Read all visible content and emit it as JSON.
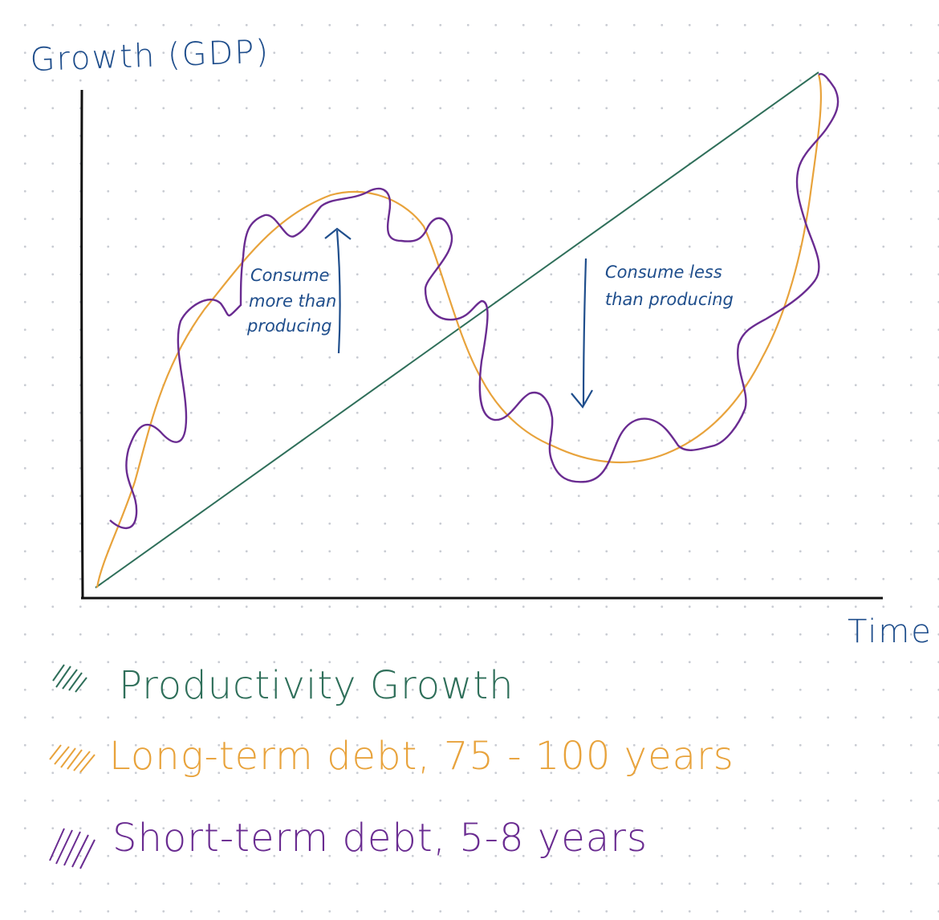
{
  "axes": {
    "y_title": "Growth (GDP)",
    "x_title": "Time"
  },
  "annotations": {
    "peak": [
      "Consume",
      "more than",
      "producing"
    ],
    "trough": [
      "Consume less",
      "than producing"
    ]
  },
  "legend": [
    {
      "label": "Productivity Growth",
      "color": "#2f6f5a"
    },
    {
      "label": "Long-term debt, 75 - 100 years",
      "color": "#e8a33c"
    },
    {
      "label": "Short-term debt, 5-8 years",
      "color": "#6a2c91"
    }
  ],
  "colors": {
    "axis": "#111111",
    "ink": "#1f4e8c"
  }
}
